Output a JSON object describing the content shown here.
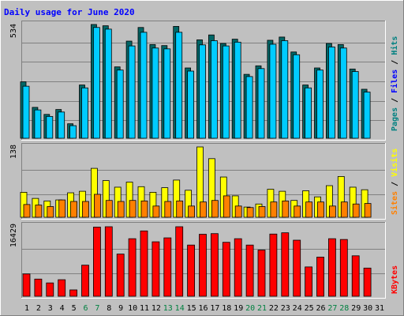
{
  "chart_data": {
    "type": "bar",
    "title": "Daily usage for June 2020",
    "colors": {
      "background": "#c0c0c0",
      "plot_bg": "#c0c0c0",
      "title": "#0000ff",
      "hits": "#00ccff",
      "hits_dark": "#006666",
      "files": "#0080ff",
      "pages": "#00cccc",
      "sites": "#ff8000",
      "visits": "#ffff00",
      "kbytes": "#ff0000",
      "day_normal": "#000000",
      "day_weekend": "#008040",
      "label_hits": "#00ccff",
      "label_files": "#0000ff",
      "label_pages": "#008080",
      "label_visits": "#ffff00",
      "label_sites": "#ff8000",
      "label_kbytes": "#ff0000"
    },
    "days": [
      "1",
      "2",
      "3",
      "4",
      "5",
      "6",
      "7",
      "8",
      "9",
      "10",
      "11",
      "12",
      "13",
      "14",
      "15",
      "16",
      "17",
      "18",
      "19",
      "20",
      "21",
      "22",
      "23",
      "24",
      "25",
      "26",
      "27",
      "28",
      "29",
      "30",
      "31"
    ],
    "weekend_days": [
      6,
      7,
      13,
      14,
      20,
      21,
      27,
      28
    ],
    "panels": {
      "hits": {
        "max_label": "534",
        "ymax": 534,
        "legend": [
          "Pages",
          "Files",
          "Hits"
        ],
        "series": [
          {
            "name": "Hits",
            "values": [
              265,
              145,
              112,
              135,
              68,
              250,
              534,
              528,
              335,
              456,
              520,
              440,
              435,
              525,
              330,
              462,
              485,
              445,
              465,
              300,
              340,
              460,
              475,
              405,
              250,
              330,
              445,
              440,
              325,
              230,
              0
            ]
          },
          {
            "name": "Files",
            "values": [
              248,
              135,
              104,
              125,
              60,
              240,
              528,
              520,
              325,
              440,
              505,
              430,
              426,
              505,
              320,
              445,
              465,
              440,
              458,
              294,
              332,
              448,
              465,
              398,
              240,
              325,
              435,
              430,
              318,
              220,
              0
            ]
          },
          {
            "name": "Pages",
            "values": [
              250,
              142,
              110,
              130,
              65,
              245,
              530,
              522,
              330,
              445,
              510,
              432,
              430,
              510,
              325,
              448,
              470,
              442,
              460,
              296,
              336,
              452,
              468,
              400,
              245,
              328,
              440,
              432,
              320,
              225,
              0
            ]
          }
        ]
      },
      "visits": {
        "max_label": "138",
        "ymax": 138,
        "legend": [
          "Sites",
          "Visits"
        ],
        "series": [
          {
            "name": "Visits",
            "values": [
              49,
              37,
              32,
              34,
              48,
              51,
              96,
              72,
              59,
              69,
              60,
              49,
              58,
              73,
              53,
              138,
              115,
              79,
              42,
              20,
              26,
              55,
              51,
              33,
              52,
              40,
              62,
              80,
              59,
              54,
              0
            ]
          },
          {
            "name": "Sites",
            "values": [
              25,
              24,
              21,
              34,
              31,
              31,
              45,
              33,
              31,
              33,
              32,
              22,
              31,
              32,
              22,
              30,
              33,
              42,
              22,
              19,
              21,
              30,
              32,
              22,
              30,
              30,
              22,
              30,
              26,
              27,
              0
            ]
          }
        ]
      },
      "kbytes": {
        "max_label": "16429",
        "ymax": 16429,
        "legend": [
          "KBytes"
        ],
        "series": [
          {
            "name": "KBytes",
            "values": [
              5270,
              4060,
              3150,
              3910,
              1500,
              7350,
              16340,
              16429,
              9970,
              13600,
              15440,
              12870,
              13800,
              16429,
              12100,
              14650,
              14800,
              12750,
              13600,
              12100,
              10920,
              14700,
              15000,
              13250,
              6930,
              9250,
              13600,
              13420,
              9560,
              6660,
              0
            ]
          }
        ]
      }
    }
  }
}
